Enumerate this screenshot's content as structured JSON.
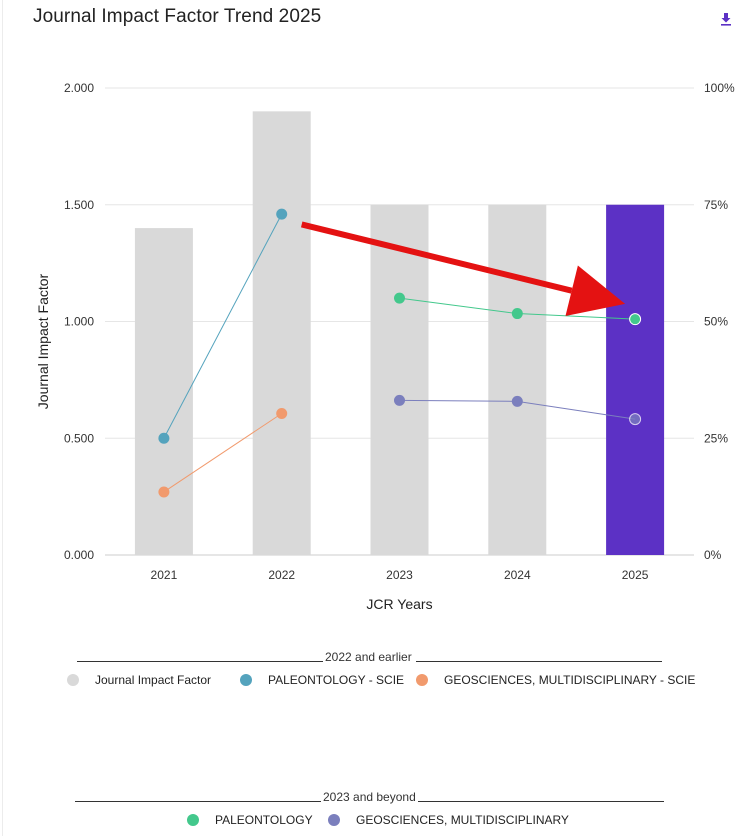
{
  "header": {
    "title": "Journal Impact Factor Trend 2025",
    "download_icon": "download-icon"
  },
  "colors": {
    "bar": "#d9d9d9",
    "bar_highlight": "#5c31c5",
    "paleontology_scie": "#54a3bd",
    "geosciences_scie": "#f19a6d",
    "paleontology": "#43c88c",
    "geosciences": "#7b7fbd",
    "arrow": "#e41212"
  },
  "chart_data": {
    "type": "bar",
    "xlabel": "JCR Years",
    "ylabel": "Journal Impact Factor",
    "categories": [
      "2021",
      "2022",
      "2023",
      "2024",
      "2025"
    ],
    "ylim": [
      0,
      2
    ],
    "y_ticks": [
      "0.000",
      "0.500",
      "1.000",
      "1.500",
      "2.000"
    ],
    "y2_ticks": [
      "0%",
      "25%",
      "50%",
      "75%",
      "100%"
    ],
    "y2lim": [
      0,
      100
    ],
    "bars": {
      "name": "Journal Impact Factor",
      "values": [
        1.4,
        1.9,
        1.5,
        1.5,
        1.5
      ],
      "highlight_index": 4
    },
    "series": [
      {
        "name": "PALEONTOLOGY - SCIE",
        "axis": "right",
        "values": [
          25,
          73,
          null,
          null,
          null
        ]
      },
      {
        "name": "GEOSCIENCES, MULTIDISCIPLINARY - SCIE",
        "axis": "right",
        "values": [
          13.5,
          30.3,
          null,
          null,
          null
        ]
      },
      {
        "name": "PALEONTOLOGY",
        "axis": "right",
        "values": [
          null,
          null,
          55,
          51.7,
          50.5
        ]
      },
      {
        "name": "GEOSCIENCES, MULTIDISCIPLINARY",
        "axis": "right",
        "values": [
          null,
          null,
          33.1,
          32.9,
          29.1
        ]
      }
    ],
    "annotation": {
      "type": "arrow",
      "from": [
        "2022",
        1.45
      ],
      "to": [
        "2025",
        1.05
      ]
    }
  },
  "legend": {
    "group1": {
      "header": "2022 and earlier",
      "items": [
        "Journal Impact Factor",
        "PALEONTOLOGY - SCIE",
        "GEOSCIENCES, MULTIDISCIPLINARY - SCIE"
      ]
    },
    "group2": {
      "header": "2023 and beyond",
      "items": [
        "PALEONTOLOGY",
        "GEOSCIENCES, MULTIDISCIPLINARY"
      ]
    }
  }
}
